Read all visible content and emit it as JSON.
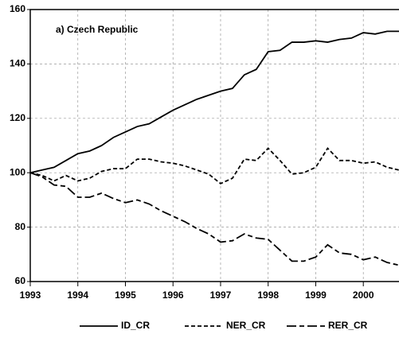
{
  "chart_data": {
    "type": "line",
    "title": "a) Czech Republic",
    "x": [
      1993,
      1993.25,
      1993.5,
      1993.75,
      1994,
      1994.25,
      1994.5,
      1994.75,
      1995,
      1995.25,
      1995.5,
      1995.75,
      1996,
      1996.25,
      1996.5,
      1996.75,
      1997,
      1997.25,
      1997.5,
      1997.75,
      1998,
      1998.25,
      1998.5,
      1998.75,
      1999,
      1999.25,
      1999.5,
      1999.75,
      2000,
      2000.25,
      2000.5,
      2000.75
    ],
    "series": [
      {
        "name": "ID_CR",
        "color": "#000000",
        "dash": "solid",
        "values": [
          100,
          101,
          102,
          104.5,
          107,
          108,
          110,
          113,
          115,
          117,
          118,
          120.5,
          123,
          125,
          127,
          128.5,
          130,
          131,
          136,
          138,
          144.5,
          145,
          148,
          148,
          148.5,
          148,
          149,
          149.5,
          151.5,
          151,
          152,
          152
        ]
      },
      {
        "name": "NER_CR",
        "color": "#000000",
        "dash": "short",
        "values": [
          100,
          99,
          97,
          99,
          97,
          98,
          100.5,
          101.5,
          101.5,
          105,
          105,
          104,
          103.5,
          102.5,
          101,
          99.5,
          96,
          98,
          105,
          104.5,
          109,
          104.5,
          99.5,
          100,
          102,
          109,
          104.5,
          104.5,
          103.5,
          104,
          102,
          101
        ]
      },
      {
        "name": "RER_CR",
        "color": "#000000",
        "dash": "long",
        "values": [
          100,
          98.5,
          95.5,
          95,
          91,
          91,
          92.5,
          90.5,
          89,
          90,
          88.5,
          86,
          84,
          82,
          79.5,
          77.5,
          74.5,
          75,
          77.5,
          76,
          75.5,
          71.5,
          67.5,
          67.5,
          69,
          73.5,
          70.5,
          70,
          68,
          69,
          67,
          66
        ]
      }
    ],
    "xlim": [
      1993,
      2000.75
    ],
    "xticks": [
      1993,
      1994,
      1995,
      1996,
      1997,
      1998,
      1999,
      2000
    ],
    "ylim": [
      60,
      160
    ],
    "yticks": [
      60,
      80,
      100,
      120,
      140,
      160
    ],
    "grid": true,
    "legend": "bottom"
  }
}
